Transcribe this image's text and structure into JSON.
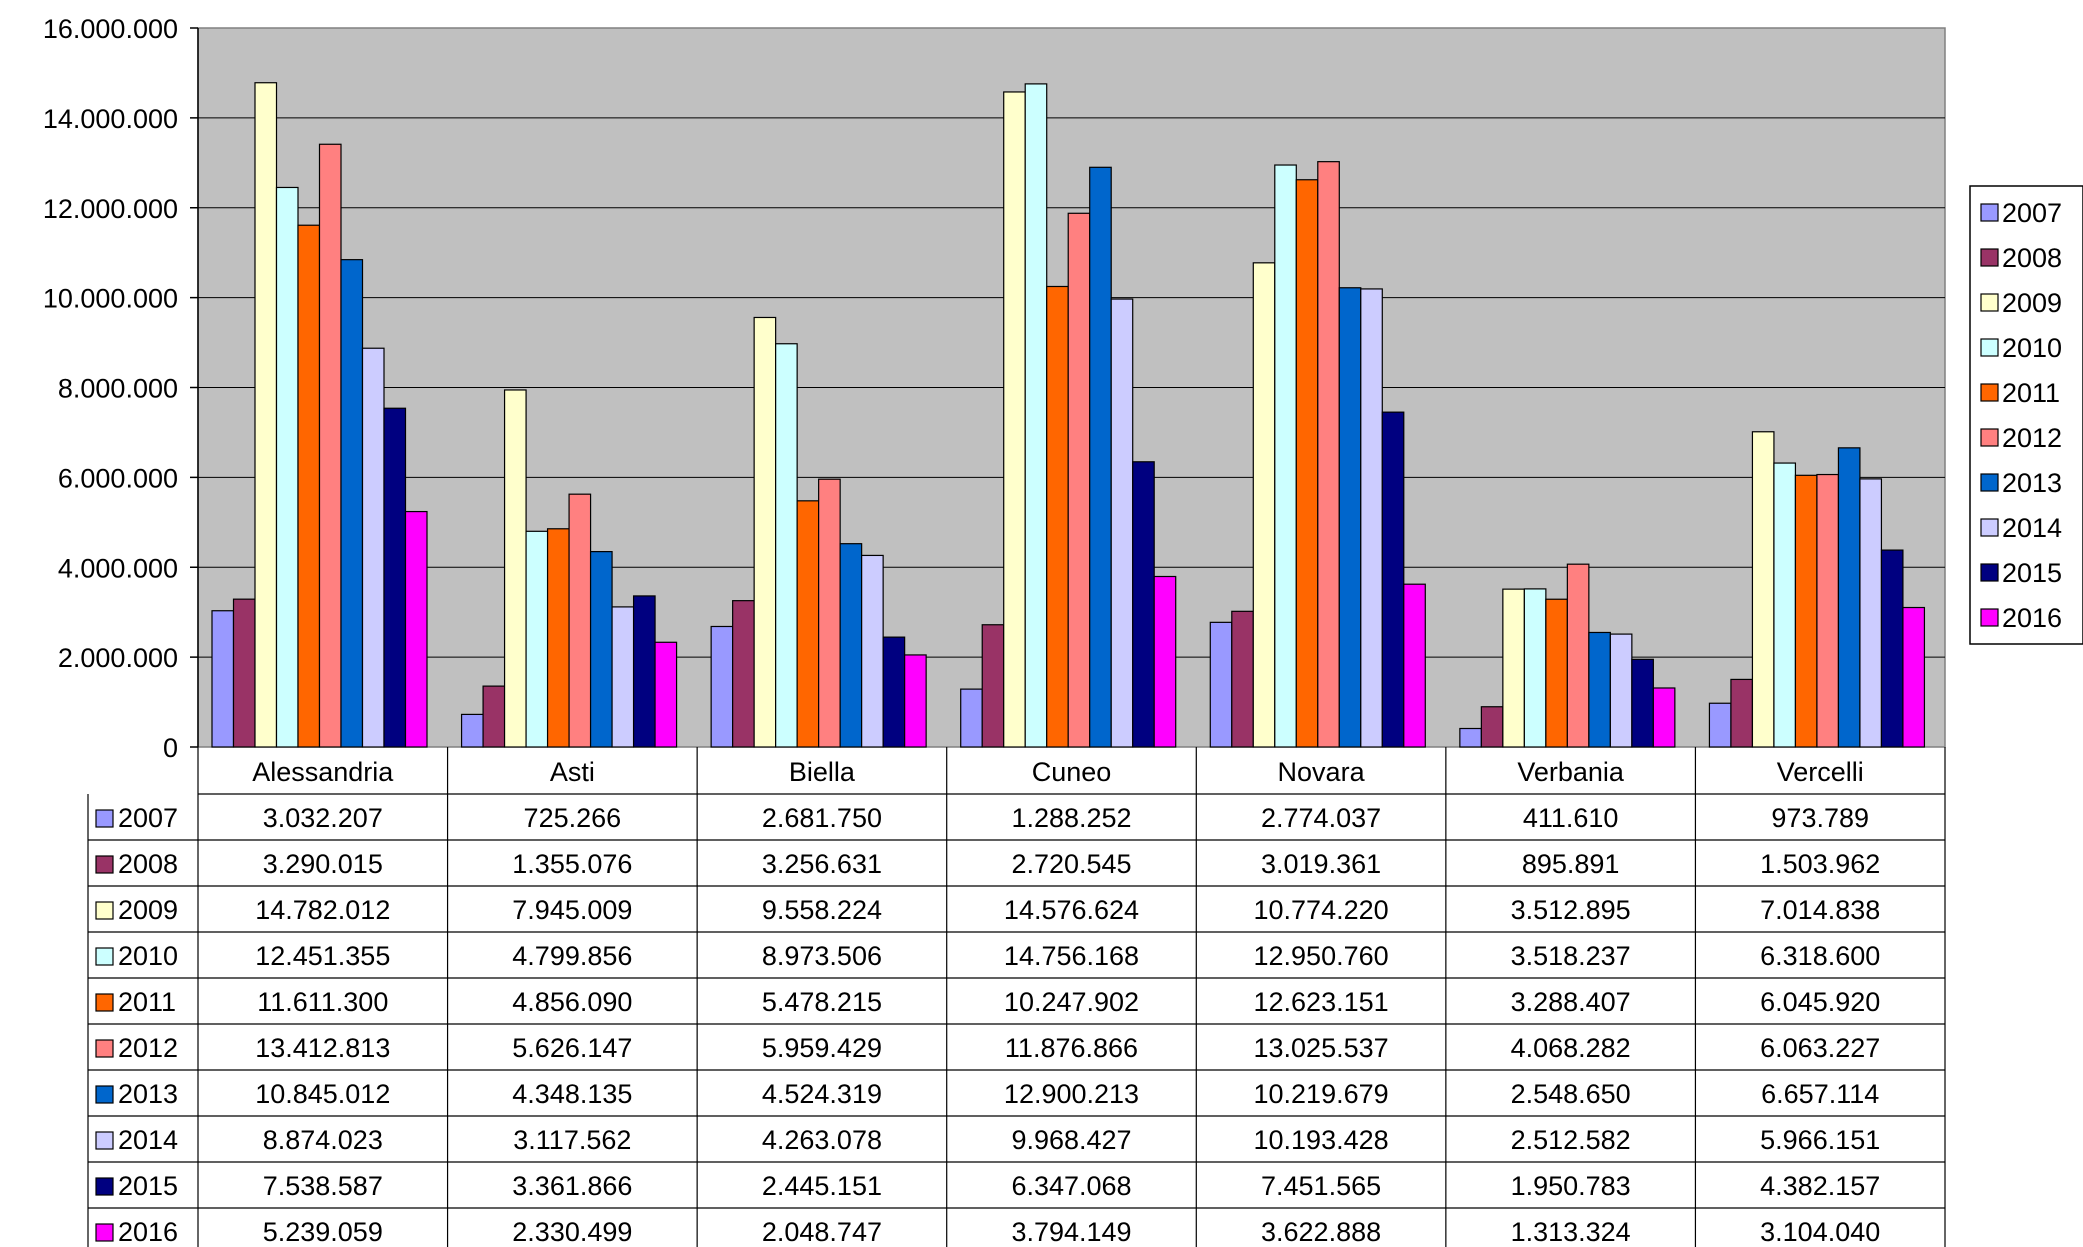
{
  "chart_data": {
    "type": "bar",
    "title": "",
    "xlabel": "",
    "ylabel": "",
    "ylim": [
      0,
      16000000
    ],
    "yticks": [
      0,
      2000000,
      4000000,
      6000000,
      8000000,
      10000000,
      12000000,
      14000000,
      16000000
    ],
    "ytick_labels": [
      "0",
      "2.000.000",
      "4.000.000",
      "6.000.000",
      "8.000.000",
      "10.000.000",
      "12.000.000",
      "14.000.000",
      "16.000.000"
    ],
    "grid": true,
    "legend_position": "right",
    "data_table": true,
    "plot_background": "#c0c0c0",
    "categories": [
      "Alessandria",
      "Asti",
      "Biella",
      "Cuneo",
      "Novara",
      "Verbania",
      "Vercelli"
    ],
    "series": [
      {
        "name": "2007",
        "color": "#9999ff",
        "values": [
          3032207,
          725266,
          2681750,
          1288252,
          2774037,
          411610,
          973789
        ],
        "labels": [
          "3.032.207",
          "725.266",
          "2.681.750",
          "1.288.252",
          "2.774.037",
          "411.610",
          "973.789"
        ]
      },
      {
        "name": "2008",
        "color": "#993366",
        "values": [
          3290015,
          1355076,
          3256631,
          2720545,
          3019361,
          895891,
          1503962
        ],
        "labels": [
          "3.290.015",
          "1.355.076",
          "3.256.631",
          "2.720.545",
          "3.019.361",
          "895.891",
          "1.503.962"
        ]
      },
      {
        "name": "2009",
        "color": "#ffffcc",
        "values": [
          14782012,
          7945009,
          9558224,
          14576624,
          10774220,
          3512895,
          7014838
        ],
        "labels": [
          "14.782.012",
          "7.945.009",
          "9.558.224",
          "14.576.624",
          "10.774.220",
          "3.512.895",
          "7.014.838"
        ]
      },
      {
        "name": "2010",
        "color": "#ccffff",
        "values": [
          12451355,
          4799856,
          8973506,
          14756168,
          12950760,
          3518237,
          6318600
        ],
        "labels": [
          "12.451.355",
          "4.799.856",
          "8.973.506",
          "14.756.168",
          "12.950.760",
          "3.518.237",
          "6.318.600"
        ]
      },
      {
        "name": "2011",
        "color": "#ff6600",
        "values": [
          11611300,
          4856090,
          5478215,
          10247902,
          12623151,
          3288407,
          6045920
        ],
        "labels": [
          "11.611.300",
          "4.856.090",
          "5.478.215",
          "10.247.902",
          "12.623.151",
          "3.288.407",
          "6.045.920"
        ]
      },
      {
        "name": "2012",
        "color": "#ff8080",
        "values": [
          13412813,
          5626147,
          5959429,
          11876866,
          13025537,
          4068282,
          6063227
        ],
        "labels": [
          "13.412.813",
          "5.626.147",
          "5.959.429",
          "11.876.866",
          "13.025.537",
          "4.068.282",
          "6.063.227"
        ]
      },
      {
        "name": "2013",
        "color": "#0066cc",
        "values": [
          10845012,
          4348135,
          4524319,
          12900213,
          10219679,
          2548650,
          6657114
        ],
        "labels": [
          "10.845.012",
          "4.348.135",
          "4.524.319",
          "12.900.213",
          "10.219.679",
          "2.548.650",
          "6.657.114"
        ]
      },
      {
        "name": "2014",
        "color": "#ccccff",
        "values": [
          8874023,
          3117562,
          4263078,
          9968427,
          10193428,
          2512582,
          5966151
        ],
        "labels": [
          "8.874.023",
          "3.117.562",
          "4.263.078",
          "9.968.427",
          "10.193.428",
          "2.512.582",
          "5.966.151"
        ]
      },
      {
        "name": "2015",
        "color": "#000080",
        "values": [
          7538587,
          3361866,
          2445151,
          6347068,
          7451565,
          1950783,
          4382157
        ],
        "labels": [
          "7.538.587",
          "3.361.866",
          "2.445.151",
          "6.347.068",
          "7.451.565",
          "1.950.783",
          "4.382.157"
        ]
      },
      {
        "name": "2016",
        "color": "#ff00ff",
        "values": [
          5239059,
          2330499,
          2048747,
          3794149,
          3622888,
          1313324,
          3104040
        ],
        "labels": [
          "5.239.059",
          "2.330.499",
          "2.048.747",
          "3.794.149",
          "3.622.888",
          "1.313.324",
          "3.104.040"
        ]
      }
    ]
  }
}
